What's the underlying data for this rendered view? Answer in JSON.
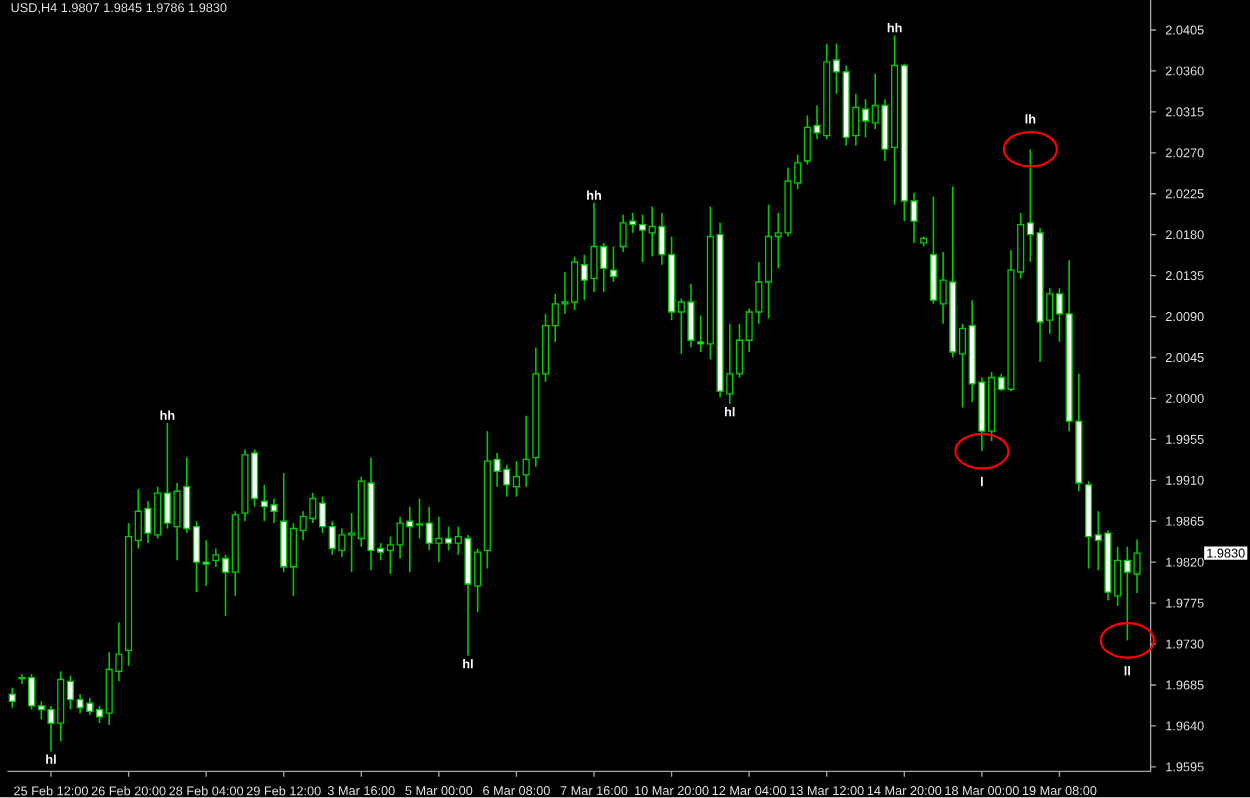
{
  "chart_data": {
    "type": "candlestick",
    "title": "USD,H4  1.9807 1.9845 1.9786 1.9830",
    "color": "#00cc00",
    "categories": [
      null,
      null,
      null,
      null,
      "25 Feb 12:00",
      null,
      null,
      null,
      null,
      null,
      null,
      null,
      "26 Feb 20:00",
      null,
      null,
      null,
      null,
      null,
      null,
      null,
      "28 Feb 04:00",
      null,
      null,
      null,
      null,
      null,
      null,
      null,
      "29 Feb 12:00",
      null,
      null,
      null,
      null,
      null,
      null,
      null,
      "3 Mar 16:00",
      null,
      null,
      null,
      null,
      null,
      null,
      null,
      "5 Mar 00:00",
      null,
      null,
      null,
      null,
      null,
      null,
      null,
      "6 Mar 08:00",
      null,
      null,
      null,
      null,
      null,
      null,
      null,
      "7 Mar 16:00",
      null,
      null,
      null,
      null,
      null,
      null,
      null,
      "10 Mar 20:00",
      null,
      null,
      null,
      null,
      null,
      null,
      null,
      "12 Mar 04:00",
      null,
      null,
      null,
      null,
      null,
      null,
      null,
      "13 Mar 12:00",
      null,
      null,
      null,
      null,
      null,
      null,
      null,
      "14 Mar 20:00",
      null,
      null,
      null,
      null,
      null,
      null,
      null,
      "18 Mar 00:00",
      null,
      null,
      null,
      null,
      null,
      null,
      null,
      "19 Mar 08:00",
      null,
      null,
      null,
      null,
      null,
      null,
      null,
      null
    ],
    "ohlc": [
      [
        1.9675,
        1.9682,
        1.966,
        1.9667
      ],
      [
        1.9693,
        1.9697,
        1.9686,
        1.9692
      ],
      [
        1.9693,
        1.9697,
        1.9658,
        1.9662
      ],
      [
        1.9662,
        1.9667,
        1.9647,
        1.9658
      ],
      [
        1.9658,
        1.9662,
        1.9612,
        1.9643
      ],
      [
        1.9643,
        1.97,
        1.9623,
        1.9691
      ],
      [
        1.9689,
        1.9695,
        1.9658,
        1.9669
      ],
      [
        1.9669,
        1.9675,
        1.9654,
        1.966
      ],
      [
        1.9665,
        1.9671,
        1.9652,
        1.9656
      ],
      [
        1.9658,
        1.9662,
        1.9643,
        1.965
      ],
      [
        1.9654,
        1.9721,
        1.9641,
        1.9702
      ],
      [
        1.97,
        1.9754,
        1.9689,
        1.9719
      ],
      [
        1.9723,
        1.9863,
        1.9706,
        1.9848
      ],
      [
        1.9844,
        1.99,
        1.9835,
        1.9876
      ],
      [
        1.9879,
        1.9887,
        1.9841,
        1.9852
      ],
      [
        1.985,
        1.9903,
        1.9846,
        1.9896
      ],
      [
        1.9896,
        1.9973,
        1.9857,
        1.9863
      ],
      [
        1.9859,
        1.9907,
        1.9822,
        1.9898
      ],
      [
        1.9903,
        1.9935,
        1.9852,
        1.9857
      ],
      [
        1.9859,
        1.9865,
        1.9787,
        1.982
      ],
      [
        1.982,
        1.9844,
        1.9794,
        1.9818
      ],
      [
        1.9822,
        1.9835,
        1.9815,
        1.9828
      ],
      [
        1.9824,
        1.9828,
        1.9761,
        1.9809
      ],
      [
        1.9809,
        1.9876,
        1.9783,
        1.9872
      ],
      [
        1.9874,
        1.9944,
        1.9865,
        1.9938
      ],
      [
        1.994,
        1.9944,
        1.9881,
        1.989
      ],
      [
        1.9887,
        1.9905,
        1.9865,
        1.9881
      ],
      [
        1.9883,
        1.989,
        1.9863,
        1.9876
      ],
      [
        1.9865,
        1.9918,
        1.9809,
        1.9815
      ],
      [
        1.9815,
        1.9863,
        1.9783,
        1.9857
      ],
      [
        1.9855,
        1.9876,
        1.9844,
        1.987
      ],
      [
        1.9868,
        1.9896,
        1.9863,
        1.989
      ],
      [
        1.9885,
        1.9892,
        1.9852,
        1.9859
      ],
      [
        1.9859,
        1.9865,
        1.9828,
        1.9835
      ],
      [
        1.9833,
        1.9857,
        1.9826,
        1.985
      ],
      [
        1.985,
        1.9874,
        1.9809,
        1.9852
      ],
      [
        1.9846,
        1.9914,
        1.9837,
        1.9909
      ],
      [
        1.9907,
        1.9935,
        1.9811,
        1.9833
      ],
      [
        1.9835,
        1.9841,
        1.9822,
        1.9831
      ],
      [
        1.9833,
        1.9848,
        1.9807,
        1.9839
      ],
      [
        1.9839,
        1.987,
        1.9824,
        1.9863
      ],
      [
        1.9865,
        1.9881,
        1.9809,
        1.9859
      ],
      [
        1.9862,
        1.989,
        1.9846,
        1.9861
      ],
      [
        1.9863,
        1.9881,
        1.9833,
        1.9841
      ],
      [
        1.9841,
        1.987,
        1.982,
        1.9846
      ],
      [
        1.9846,
        1.9859,
        1.9833,
        1.9841
      ],
      [
        1.9841,
        1.9859,
        1.9828,
        1.9848
      ],
      [
        1.9846,
        1.985,
        1.9717,
        1.9796
      ],
      [
        1.9794,
        1.9835,
        1.9765,
        1.9831
      ],
      [
        1.9833,
        1.9964,
        1.9813,
        1.9931
      ],
      [
        1.9933,
        1.994,
        1.9903,
        1.992
      ],
      [
        1.9922,
        1.9927,
        1.9892,
        1.9905
      ],
      [
        1.9903,
        1.9931,
        1.9892,
        1.9914
      ],
      [
        1.9916,
        1.9981,
        1.9903,
        1.9933
      ],
      [
        1.9935,
        2.0056,
        1.9925,
        2.0027
      ],
      [
        2.0027,
        2.0093,
        2.0018,
        2.008
      ],
      [
        2.008,
        2.0115,
        2.0062,
        2.0104
      ],
      [
        2.0104,
        2.0139,
        2.0093,
        2.0106
      ],
      [
        2.0106,
        2.0156,
        2.0097,
        2.015
      ],
      [
        2.0147,
        2.0158,
        2.0108,
        2.013
      ],
      [
        2.0132,
        2.0215,
        2.0117,
        2.0167
      ],
      [
        2.0167,
        2.0171,
        2.0117,
        2.0143
      ],
      [
        2.0141,
        2.0167,
        2.0128,
        2.0134
      ],
      [
        2.0167,
        2.0202,
        2.0161,
        2.0193
      ],
      [
        2.0195,
        2.0204,
        2.0182,
        2.0191
      ],
      [
        2.0191,
        2.0202,
        2.015,
        2.0185
      ],
      [
        2.0182,
        2.0211,
        2.0156,
        2.0189
      ],
      [
        2.0189,
        2.0204,
        2.0147,
        2.0158
      ],
      [
        2.0158,
        2.0178,
        2.0086,
        2.0095
      ],
      [
        2.0095,
        2.011,
        2.0049,
        2.0106
      ],
      [
        2.0106,
        2.0126,
        2.0056,
        2.0064
      ],
      [
        2.0062,
        2.0091,
        2.0051,
        2.006
      ],
      [
        2.006,
        2.0211,
        2.0043,
        2.0178
      ],
      [
        2.018,
        2.0193,
        2.0001,
        2.0008
      ],
      [
        2.0005,
        2.0082,
        1.9994,
        2.0027
      ],
      [
        2.0027,
        2.0082,
        2.0023,
        2.0064
      ],
      [
        2.0064,
        2.0099,
        2.0051,
        2.0095
      ],
      [
        2.0095,
        2.015,
        2.0082,
        2.0128
      ],
      [
        2.0128,
        2.0213,
        2.0088,
        2.0178
      ],
      [
        2.0178,
        2.0204,
        2.0143,
        2.0182
      ],
      [
        2.0182,
        2.0254,
        2.0178,
        2.0239
      ],
      [
        2.0237,
        2.0268,
        2.023,
        2.0259
      ],
      [
        2.0261,
        2.0311,
        2.0257,
        2.0298
      ],
      [
        2.03,
        2.0322,
        2.0285,
        2.0292
      ],
      [
        2.0289,
        2.039,
        2.0285,
        2.037
      ],
      [
        2.0372,
        2.039,
        2.0335,
        2.0359
      ],
      [
        2.0359,
        2.0366,
        2.0278,
        2.0287
      ],
      [
        2.0289,
        2.0335,
        2.0278,
        2.032
      ],
      [
        2.0318,
        2.0329,
        2.0287,
        2.0305
      ],
      [
        2.0303,
        2.0357,
        2.0296,
        2.0322
      ],
      [
        2.0322,
        2.0329,
        2.0261,
        2.0274
      ],
      [
        2.0276,
        2.0399,
        2.0213,
        2.0366
      ],
      [
        2.0366,
        2.0368,
        2.0195,
        2.0217
      ],
      [
        2.0217,
        2.0226,
        2.0171,
        2.0195
      ],
      [
        2.0171,
        2.0178,
        2.0167,
        2.0176
      ],
      [
        2.0158,
        2.0222,
        2.0104,
        2.0108
      ],
      [
        2.0104,
        2.0161,
        2.0082,
        2.013
      ],
      [
        2.0128,
        2.0233,
        2.0045,
        2.0051
      ],
      [
        2.0049,
        2.0082,
        1.999,
        2.0077
      ],
      [
        2.008,
        2.0108,
        1.9996,
        2.0016
      ],
      [
        2.0018,
        2.0023,
        1.9942,
        1.9964
      ],
      [
        1.9964,
        2.0029,
        1.9953,
        2.0023
      ],
      [
        2.0023,
        2.0027,
        2.0008,
        2.001
      ],
      [
        2.001,
        2.0163,
        2.0008,
        2.0141
      ],
      [
        2.0139,
        2.0204,
        2.0132,
        2.0191
      ],
      [
        2.0193,
        2.0274,
        2.015,
        2.018
      ],
      [
        2.0182,
        2.0187,
        2.004,
        2.0084
      ],
      [
        2.0086,
        2.0121,
        2.0071,
        2.0115
      ],
      [
        2.0115,
        2.0121,
        2.0062,
        2.0093
      ],
      [
        2.0093,
        2.0152,
        1.9964,
        1.9975
      ],
      [
        1.9975,
        2.0027,
        1.9898,
        1.9907
      ],
      [
        1.9905,
        1.9909,
        1.9813,
        1.9848
      ],
      [
        1.985,
        1.9876,
        1.9811,
        1.9844
      ],
      [
        1.9852,
        1.9855,
        1.9778,
        1.9787
      ],
      [
        1.9783,
        1.9837,
        1.9772,
        1.9822
      ],
      [
        1.9822,
        1.9837,
        1.9734,
        1.9809
      ],
      [
        1.9807,
        1.9845,
        1.9786,
        1.983
      ]
    ],
    "ylim": [
      1.959,
      2.0438
    ],
    "yticks": [
      {
        "value": 2.0405,
        "label": "2.0405"
      },
      {
        "value": 2.036,
        "label": "2.0360"
      },
      {
        "value": 2.0315,
        "label": "2.0315"
      },
      {
        "value": 2.027,
        "label": "2.0270"
      },
      {
        "value": 2.0225,
        "label": "2.0225"
      },
      {
        "value": 2.018,
        "label": "2.0180"
      },
      {
        "value": 2.0135,
        "label": "2.0135"
      },
      {
        "value": 2.009,
        "label": "2.0090"
      },
      {
        "value": 2.0045,
        "label": "2.0045"
      },
      {
        "value": 2.0,
        "label": "2.0000"
      },
      {
        "value": 1.9955,
        "label": "1.9955"
      },
      {
        "value": 1.991,
        "label": "1.9910"
      },
      {
        "value": 1.9865,
        "label": "1.9865"
      },
      {
        "value": 1.982,
        "label": "1.9820"
      },
      {
        "value": 1.9775,
        "label": "1.9775"
      },
      {
        "value": 1.973,
        "label": "1.9730"
      },
      {
        "value": 1.9685,
        "label": "1.9685"
      },
      {
        "value": 1.964,
        "label": "1.9640"
      },
      {
        "value": 1.9595,
        "label": "1.9595"
      }
    ],
    "annotations": [
      {
        "text": "hl",
        "y": 1.9612
      },
      {
        "text": "hh",
        "y": 1.9973
      },
      {
        "text": "hl",
        "y": 1.9717
      },
      {
        "text": "hh",
        "y": 2.0215
      },
      {
        "text": "hl",
        "y": 1.9994
      },
      {
        "text": "hh",
        "y": 2.0399
      },
      {
        "text": "lh",
        "y": 2.0274
      },
      {
        "text": "l",
        "y": 1.9942
      },
      {
        "text": "ll",
        "y": 1.9734
      },
      "1.9830"
    ]
  }
}
